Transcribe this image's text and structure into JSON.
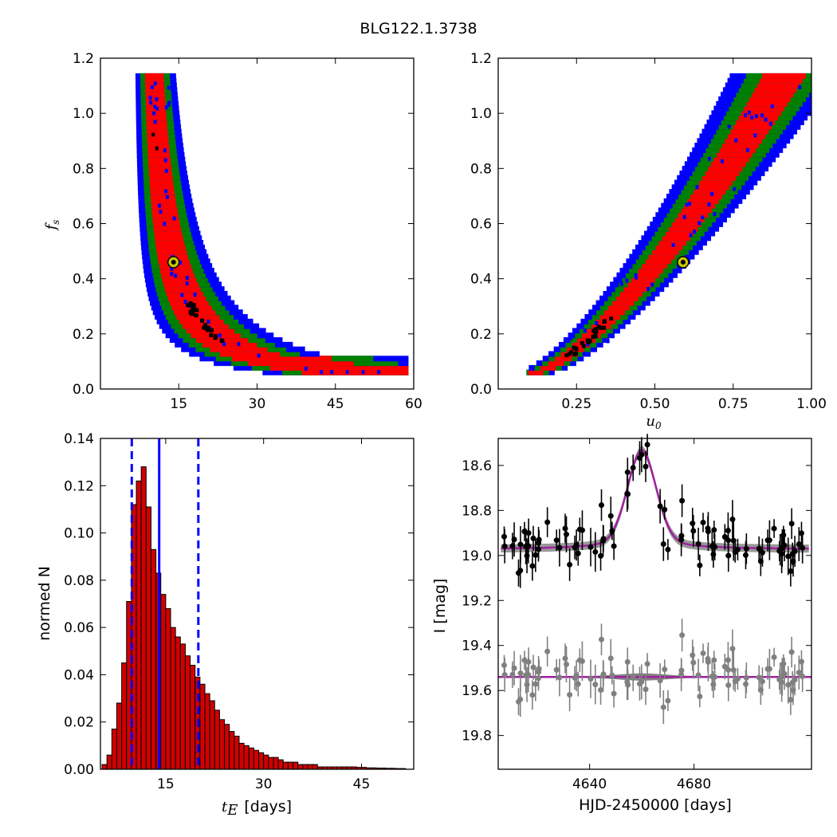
{
  "title": "BLG122.1.3738",
  "colors": {
    "conf1": "#ff0000",
    "conf2": "#008000",
    "conf3": "#0000ff",
    "best": "#000000",
    "hist": "#d00000",
    "vline": "#0000ff",
    "model": "#a020a0",
    "data": "#000000",
    "resid": "#808080"
  },
  "panels": {
    "tl": {
      "ylabel_base": "f",
      "ylabel_sub": "s",
      "xticks": [
        "15",
        "30",
        "45",
        "60"
      ],
      "yticks": [
        "0.0",
        "0.2",
        "0.4",
        "0.6",
        "0.8",
        "1.0",
        "1.2"
      ]
    },
    "tr": {
      "xlabel_base": "u",
      "xlabel_sub": "0",
      "xticks": [
        "0.25",
        "0.50",
        "0.75",
        "1.00"
      ],
      "yticks": [
        "0.0",
        "0.2",
        "0.4",
        "0.6",
        "0.8",
        "1.0",
        "1.2"
      ]
    },
    "bl": {
      "xlabel_base": "t",
      "xlabel_sub": "E",
      "xlabel_unit": "[days]",
      "ylabel": "normed N",
      "xticks": [
        "15",
        "30",
        "45"
      ],
      "yticks": [
        "0.00",
        "0.02",
        "0.04",
        "0.06",
        "0.08",
        "0.10",
        "0.12",
        "0.14"
      ]
    },
    "br": {
      "xlabel": "HJD-2450000 [days]",
      "ylabel": "I [mag]",
      "xticks": [
        "4640",
        "4680"
      ],
      "yticks": [
        "18.6",
        "18.8",
        "19.0",
        "19.2",
        "19.4",
        "19.6",
        "19.8"
      ]
    }
  },
  "chart_data": [
    {
      "type": "heatmap",
      "xname": "tE",
      "yname": "fs",
      "xlim": [
        0,
        60
      ],
      "ylim": [
        0,
        1.2
      ],
      "best_fit": {
        "x": 14,
        "y": 0.46
      },
      "band": {
        "model": "fs ~ k / (tE - 8)",
        "fs_range": [
          0.06,
          1.15
        ]
      }
    },
    {
      "type": "heatmap",
      "xname": "u0",
      "yname": "fs",
      "xlim": [
        0,
        1.0
      ],
      "ylim": [
        0,
        1.2
      ],
      "best_fit": {
        "x": 0.59,
        "y": 0.46
      },
      "band": {
        "fs_range": [
          0.06,
          1.15
        ],
        "u0_range": [
          0.1,
          1.0
        ]
      }
    },
    {
      "type": "bar",
      "xname": "tE",
      "yname": "normed N",
      "xlim": [
        5,
        53
      ],
      "ylim": [
        0,
        0.14
      ],
      "bin_width": 0.75,
      "bin_start": 5.25,
      "values": [
        0.002,
        0.006,
        0.017,
        0.028,
        0.045,
        0.071,
        0.112,
        0.122,
        0.128,
        0.111,
        0.093,
        0.083,
        0.074,
        0.068,
        0.06,
        0.056,
        0.053,
        0.048,
        0.044,
        0.039,
        0.036,
        0.032,
        0.029,
        0.025,
        0.021,
        0.019,
        0.016,
        0.014,
        0.011,
        0.01,
        0.009,
        0.008,
        0.007,
        0.006,
        0.005,
        0.005,
        0.004,
        0.003,
        0.003,
        0.003,
        0.002,
        0.002,
        0.002,
        0.002,
        0.001,
        0.001,
        0.001,
        0.001,
        0.001,
        0.001,
        0.001,
        0.001,
        0.0008,
        0.0008,
        0.0006,
        0.0006,
        0.0005,
        0.0005,
        0.0004,
        0.0004,
        0.0003,
        0.0003
      ],
      "median": 14.0,
      "lower": 9.8,
      "upper": 20.0
    },
    {
      "type": "scatter",
      "xname": "HJD-2450000",
      "yname": "I",
      "xlim": [
        4605,
        4725
      ],
      "ylim": [
        19.95,
        18.48
      ],
      "baseline": 18.97,
      "peak_mag": 18.59,
      "t0": 4660,
      "width": 5.5,
      "resid_offset": 19.54
    }
  ]
}
